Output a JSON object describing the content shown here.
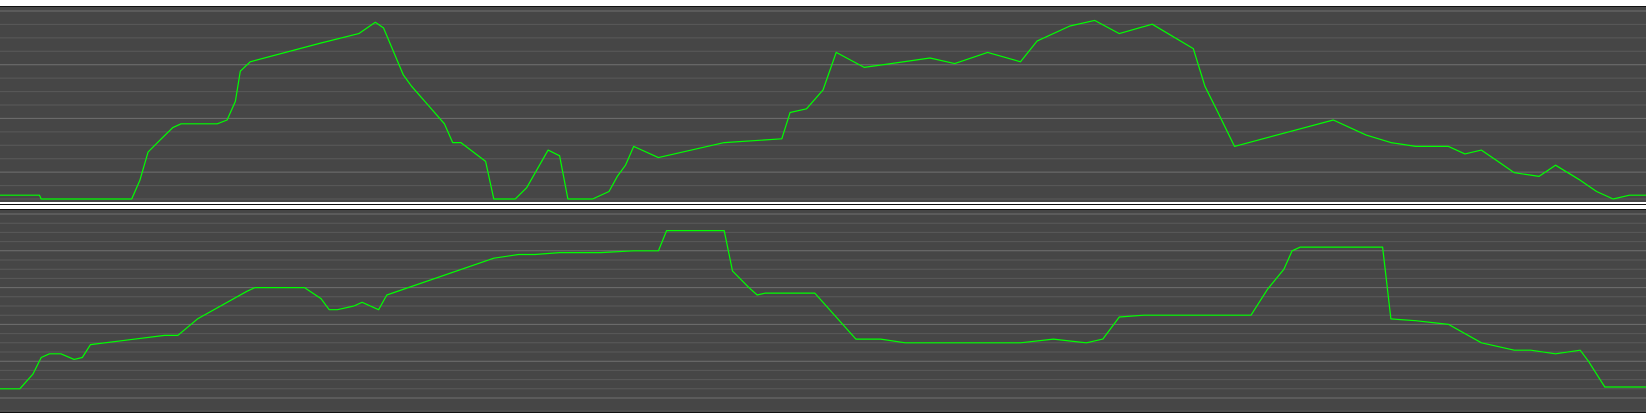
{
  "colors": {
    "background": "#464646",
    "grid": "#5a5a5a",
    "grid_major": "#707070",
    "line": "#00ff00",
    "baseline": "#ffffff"
  },
  "chart_data": [
    {
      "type": "line",
      "title": "",
      "xlabel": "",
      "ylabel": "",
      "grid": true,
      "xlim": [
        0,
        100
      ],
      "ylim": [
        0,
        100
      ],
      "series": [
        {
          "x": [
            0,
            2.4,
            2.5,
            6.0,
            7.0,
            8.0,
            8.5,
            9.0,
            9.8,
            10.5,
            11.0,
            13.2,
            13.8,
            14.3,
            14.6,
            15.2,
            19.5,
            21.8,
            22.8,
            23.3,
            24.5,
            25.0,
            26.0,
            27.0,
            27.5,
            28.0,
            29.5,
            30.0,
            31.3,
            32.0,
            33.3,
            34.0,
            34.5,
            35.0,
            36.0,
            37.0,
            37.5,
            38.0,
            38.5,
            40.0,
            44.0,
            47.5,
            48.0,
            49.0,
            50.0,
            50.8,
            52.5,
            56.5,
            58.0,
            60.0,
            62.0,
            63.0,
            65.0,
            66.5,
            68.0,
            70.0,
            72.5,
            73.2,
            74.0,
            75.0,
            81.0,
            83.0,
            84.5,
            86.0,
            88.0,
            89.0,
            90.0,
            91.0,
            92.0,
            93.5,
            94.5,
            96.0,
            97.0,
            98.0,
            99.0,
            100.0
          ],
          "values": [
            2,
            2,
            0,
            0,
            0,
            0,
            10,
            25,
            32,
            38,
            40,
            40,
            42,
            52,
            68,
            73,
            83,
            88,
            94,
            91,
            66,
            60,
            50,
            40,
            30,
            30,
            20,
            0,
            0,
            6,
            26,
            23,
            0,
            0,
            0,
            4,
            12,
            18,
            28,
            22,
            30,
            32,
            46,
            48,
            58,
            78,
            70,
            75,
            72,
            78,
            73,
            84,
            92,
            95,
            88,
            93,
            80,
            60,
            46,
            28,
            42,
            34,
            30,
            28,
            28,
            24,
            26,
            20,
            14,
            12,
            18,
            10,
            4,
            0,
            2,
            2
          ]
        }
      ]
    },
    {
      "type": "line",
      "title": "",
      "xlabel": "",
      "ylabel": "",
      "grid": true,
      "xlim": [
        0,
        100
      ],
      "ylim": [
        0,
        100
      ],
      "series": [
        {
          "x": [
            0,
            1.2,
            2.0,
            2.5,
            3.0,
            3.7,
            4.5,
            5.0,
            5.5,
            10.0,
            10.8,
            12.0,
            15.0,
            15.5,
            16.0,
            17.0,
            18.5,
            19.5,
            20.0,
            20.5,
            21.5,
            22.0,
            23.0,
            23.5,
            30.0,
            31.5,
            32.5,
            34.0,
            36.5,
            38.5,
            40.0,
            40.5,
            41.5,
            42.5,
            44.0,
            44.5,
            45.5,
            46.0,
            46.5,
            49.5,
            52.0,
            53.5,
            55.0,
            58.0,
            62.0,
            64.0,
            65.0,
            66.0,
            67.0,
            68.0,
            69.5,
            70.0,
            76.0,
            77.0,
            78.0,
            78.5,
            79.0,
            80.0,
            81.0,
            82.0,
            83.0,
            84.0,
            84.5,
            86.0,
            88.0,
            90.0,
            92.0,
            93.0,
            94.5,
            96.0,
            96.5,
            97.5,
            100.0
          ],
          "values": [
            5,
            5,
            13,
            22,
            24,
            24,
            21,
            22,
            29,
            34,
            34,
            43,
            58,
            60,
            60,
            60,
            60,
            54,
            48,
            48,
            50,
            52,
            48,
            56,
            76,
            78,
            78,
            79,
            79,
            80,
            80,
            91,
            91,
            91,
            91,
            69,
            60,
            56,
            57,
            57,
            32,
            32,
            30,
            30,
            30,
            32,
            31,
            30,
            32,
            44,
            45,
            45,
            45,
            59,
            70,
            80,
            82,
            82,
            82,
            82,
            82,
            82,
            43,
            42,
            40,
            30,
            26,
            26,
            24,
            26,
            20,
            6,
            6
          ]
        }
      ]
    }
  ]
}
